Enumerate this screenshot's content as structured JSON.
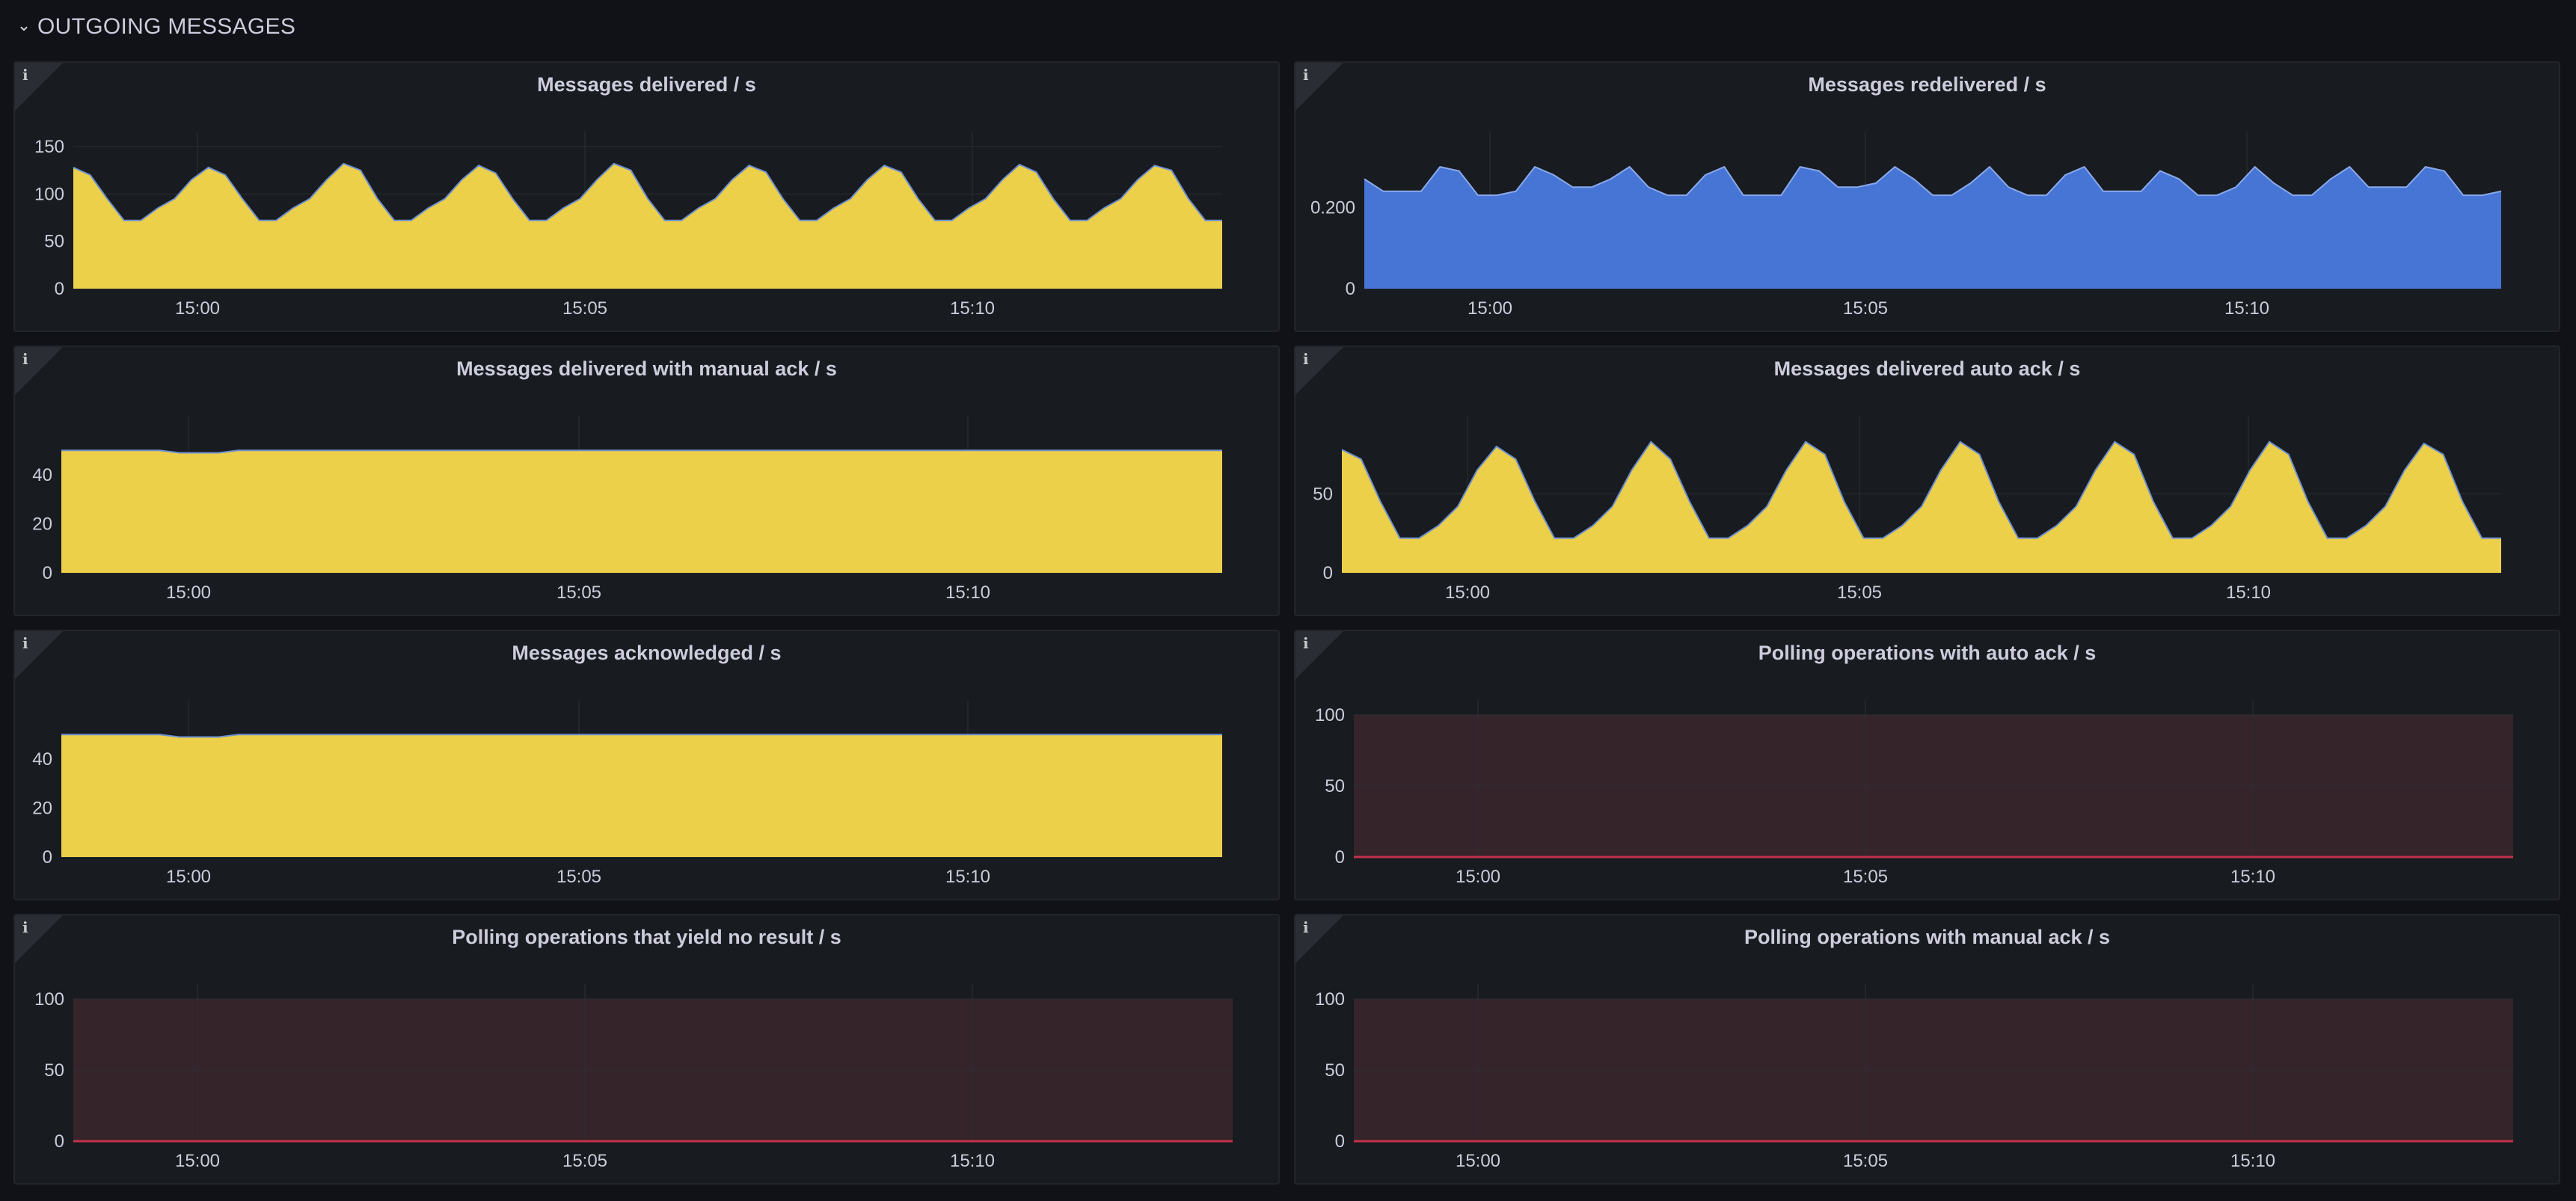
{
  "section": {
    "title": "OUTGOING MESSAGES",
    "chevron_icon": "chevron-down-icon"
  },
  "colors": {
    "yellow": "#ecd04a",
    "blue": "#4675d6",
    "red": "#c4314b",
    "red_fill": "#35242a",
    "grid": "#2c2f35",
    "line": "#6d8fcf"
  },
  "panels": [
    {
      "title": "Messages delivered / s",
      "info_icon": "i"
    },
    {
      "title": "Messages redelivered / s",
      "info_icon": "i"
    },
    {
      "title": "Messages delivered with manual ack / s",
      "info_icon": "i"
    },
    {
      "title": "Messages delivered auto ack / s",
      "info_icon": "i"
    },
    {
      "title": "Messages acknowledged / s",
      "info_icon": "i"
    },
    {
      "title": "Polling operations with auto ack / s",
      "info_icon": "i"
    },
    {
      "title": "Polling operations that yield no result / s",
      "info_icon": "i"
    },
    {
      "title": "Polling operations with manual ack / s",
      "info_icon": "i"
    }
  ],
  "chart_data": [
    {
      "type": "area",
      "title": "Messages delivered / s",
      "x_start": "14:58:25",
      "x_step_seconds": 15,
      "ylim": [
        0,
        150
      ],
      "yticks": [
        "0",
        "50",
        "100",
        "150"
      ],
      "xticks": [
        "15:00",
        "15:05",
        "15:10"
      ],
      "color": "yellow",
      "series": [
        {
          "values": [
            128,
            120,
            95,
            72,
            72,
            85,
            95,
            115,
            128,
            120,
            95,
            72,
            72,
            85,
            95,
            115,
            132,
            125,
            95,
            72,
            72,
            85,
            95,
            115,
            130,
            122,
            95,
            72,
            72,
            85,
            95,
            115,
            132,
            125,
            95,
            72,
            72,
            85,
            95,
            115,
            130,
            123,
            95,
            72,
            72,
            85,
            95,
            115,
            130,
            123,
            95,
            72,
            72,
            85,
            95,
            115,
            131,
            123,
            95,
            72,
            72,
            85,
            95,
            115,
            130,
            125,
            95,
            72,
            72
          ]
        }
      ]
    },
    {
      "type": "area",
      "title": "Messages redelivered / s",
      "x_start": "14:58:25",
      "x_step_seconds": 15,
      "ylim": [
        0,
        0.35
      ],
      "yticks": [
        "0",
        "0.200"
      ],
      "xticks": [
        "15:00",
        "15:05",
        "15:10"
      ],
      "color": "blue",
      "series": [
        {
          "values": [
            0.27,
            0.24,
            0.24,
            0.24,
            0.3,
            0.29,
            0.23,
            0.23,
            0.24,
            0.3,
            0.28,
            0.25,
            0.25,
            0.27,
            0.3,
            0.25,
            0.23,
            0.23,
            0.28,
            0.3,
            0.23,
            0.23,
            0.23,
            0.3,
            0.29,
            0.25,
            0.25,
            0.26,
            0.3,
            0.27,
            0.23,
            0.23,
            0.26,
            0.3,
            0.25,
            0.23,
            0.23,
            0.28,
            0.3,
            0.24,
            0.24,
            0.24,
            0.29,
            0.27,
            0.23,
            0.23,
            0.25,
            0.3,
            0.26,
            0.23,
            0.23,
            0.27,
            0.3,
            0.25,
            0.25,
            0.25,
            0.3,
            0.29,
            0.23,
            0.23,
            0.24
          ]
        }
      ]
    },
    {
      "type": "area",
      "title": "Messages delivered with manual ack / s",
      "x_start": "14:58:25",
      "x_step_seconds": 15,
      "ylim": [
        0,
        58
      ],
      "yticks": [
        "0",
        "20",
        "40"
      ],
      "xticks": [
        "15:00",
        "15:05",
        "15:10"
      ],
      "color": "yellow",
      "series": [
        {
          "values": [
            50,
            50,
            50,
            50,
            50,
            50,
            49,
            49,
            49,
            50,
            50,
            50,
            50,
            50,
            50,
            50,
            50,
            50,
            50,
            50,
            50,
            50,
            50,
            50,
            50,
            50,
            50,
            50,
            50,
            50,
            50,
            50,
            50,
            50,
            50,
            50,
            50,
            50,
            50,
            50,
            50,
            50,
            50,
            50,
            50,
            50,
            50,
            50,
            50,
            50,
            50,
            50,
            50,
            50,
            50,
            50,
            50,
            50,
            50,
            50
          ]
        }
      ]
    },
    {
      "type": "area",
      "title": "Messages delivered auto ack / s",
      "x_start": "14:58:25",
      "x_step_seconds": 15,
      "ylim": [
        0,
        90
      ],
      "yticks": [
        "0",
        "50"
      ],
      "xticks": [
        "15:00",
        "15:05",
        "15:10"
      ],
      "color": "yellow",
      "series": [
        {
          "values": [
            78,
            72,
            45,
            22,
            22,
            30,
            42,
            65,
            80,
            72,
            45,
            22,
            22,
            30,
            42,
            65,
            83,
            72,
            45,
            22,
            22,
            30,
            42,
            65,
            83,
            75,
            45,
            22,
            22,
            30,
            42,
            65,
            83,
            75,
            45,
            22,
            22,
            30,
            42,
            65,
            83,
            75,
            45,
            22,
            22,
            30,
            42,
            65,
            83,
            75,
            45,
            22,
            22,
            30,
            42,
            65,
            82,
            75,
            45,
            22,
            22
          ]
        }
      ]
    },
    {
      "type": "area",
      "title": "Messages acknowledged / s",
      "x_start": "14:58:25",
      "x_step_seconds": 15,
      "ylim": [
        0,
        58
      ],
      "yticks": [
        "0",
        "20",
        "40"
      ],
      "xticks": [
        "15:00",
        "15:05",
        "15:10"
      ],
      "color": "yellow",
      "series": [
        {
          "values": [
            50,
            50,
            50,
            50,
            50,
            50,
            49,
            49,
            49,
            50,
            50,
            50,
            50,
            50,
            50,
            50,
            50,
            50,
            50,
            50,
            50,
            50,
            50,
            50,
            50,
            50,
            50,
            50,
            50,
            50,
            50,
            50,
            50,
            50,
            50,
            50,
            50,
            50,
            50,
            50,
            50,
            50,
            50,
            50,
            50,
            50,
            50,
            50,
            50,
            50,
            50,
            50,
            50,
            50,
            50,
            50,
            50,
            50,
            50,
            50
          ]
        }
      ]
    },
    {
      "type": "area",
      "title": "Polling operations with auto ack / s",
      "x_start": "14:58:25",
      "x_step_seconds": 15,
      "ylim": [
        0,
        100
      ],
      "yticks": [
        "0",
        "50",
        "100"
      ],
      "xticks": [
        "15:00",
        "15:05",
        "15:10"
      ],
      "color": "red",
      "series": [
        {
          "values": [
            0,
            0
          ]
        }
      ]
    },
    {
      "type": "area",
      "title": "Polling operations that yield no result / s",
      "x_start": "14:58:25",
      "x_step_seconds": 15,
      "ylim": [
        0,
        100
      ],
      "yticks": [
        "0",
        "50",
        "100"
      ],
      "xticks": [
        "15:00",
        "15:05",
        "15:10"
      ],
      "color": "red",
      "series": [
        {
          "values": [
            0,
            0
          ]
        }
      ]
    },
    {
      "type": "area",
      "title": "Polling operations with manual ack / s",
      "x_start": "14:58:25",
      "x_step_seconds": 15,
      "ylim": [
        0,
        100
      ],
      "yticks": [
        "0",
        "50",
        "100"
      ],
      "xticks": [
        "15:00",
        "15:05",
        "15:10"
      ],
      "color": "red",
      "series": [
        {
          "values": [
            0,
            0
          ]
        }
      ]
    }
  ]
}
